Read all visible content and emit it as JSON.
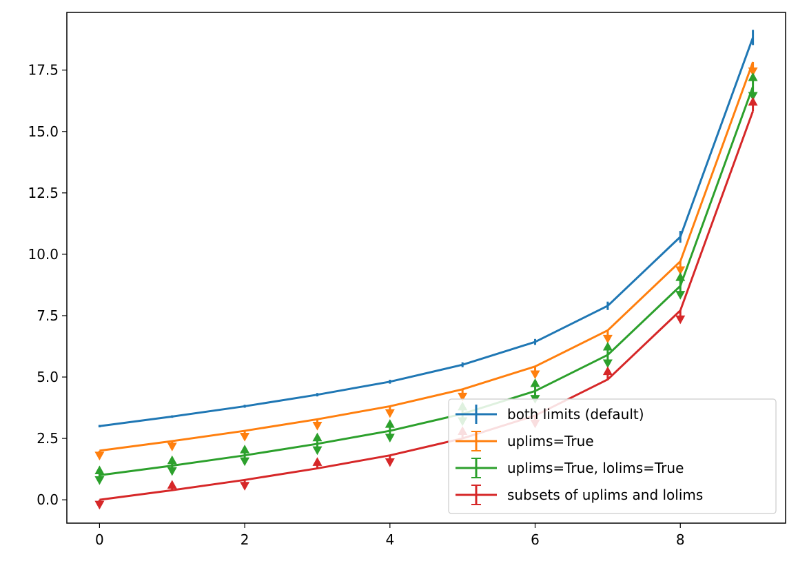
{
  "chart_data": {
    "type": "line",
    "title": "",
    "xlabel": "",
    "ylabel": "",
    "xlim": [
      -0.45,
      9.45
    ],
    "ylim": [
      -0.95,
      19.85
    ],
    "x_ticks": [
      0,
      2,
      4,
      6,
      8
    ],
    "x_tick_labels": [
      "0",
      "2",
      "4",
      "6",
      "8"
    ],
    "y_ticks": [
      0,
      2.5,
      5,
      7.5,
      10,
      12.5,
      15,
      17.5
    ],
    "y_tick_labels": [
      "0.0",
      "2.5",
      "5.0",
      "7.5",
      "10.0",
      "12.5",
      "15.0",
      "17.5"
    ],
    "grid": false,
    "legend_position": "lower-right",
    "x": [
      0,
      1,
      2,
      3,
      4,
      5,
      6,
      7,
      8,
      9
    ],
    "series": [
      {
        "name": "both limits (default)",
        "color": "#1f77b4",
        "values": [
          3.0,
          3.39,
          3.81,
          4.28,
          4.81,
          5.5,
          6.43,
          7.9,
          10.71,
          18.83
        ],
        "errors": [
          0.05,
          0.05,
          0.06,
          0.07,
          0.08,
          0.1,
          0.12,
          0.17,
          0.24,
          0.31
        ],
        "limit_markers": [
          "none",
          "none",
          "none",
          "none",
          "none",
          "none",
          "none",
          "none",
          "none",
          "none"
        ]
      },
      {
        "name": "uplims=True",
        "color": "#ff7f0e",
        "values": [
          2.0,
          2.39,
          2.81,
          3.28,
          3.81,
          4.5,
          5.43,
          6.9,
          9.71,
          17.83
        ],
        "errors": [
          0.2,
          0.22,
          0.24,
          0.26,
          0.28,
          0.3,
          0.32,
          0.34,
          0.36,
          0.38
        ],
        "limit_markers": [
          "up",
          "up",
          "up",
          "up",
          "up",
          "up",
          "up",
          "up",
          "up",
          "up"
        ]
      },
      {
        "name": "uplims=True, lolims=True",
        "color": "#2ca02c",
        "values": [
          1.0,
          1.39,
          1.81,
          2.28,
          2.81,
          3.5,
          4.43,
          5.9,
          8.71,
          16.83
        ],
        "errors": [
          0.2,
          0.22,
          0.24,
          0.26,
          0.28,
          0.3,
          0.32,
          0.34,
          0.36,
          0.38
        ],
        "limit_markers": [
          "both",
          "both",
          "both",
          "both",
          "both",
          "both",
          "both",
          "both",
          "both",
          "both"
        ]
      },
      {
        "name": "subsets of uplims and lolims",
        "color": "#d62728",
        "values": [
          0.0,
          0.39,
          0.81,
          1.28,
          1.81,
          2.5,
          3.43,
          4.9,
          7.71,
          15.83
        ],
        "errors": [
          0.2,
          0.22,
          0.24,
          0.26,
          0.28,
          0.3,
          0.32,
          0.34,
          0.36,
          0.38
        ],
        "limit_markers": [
          "up",
          "lo",
          "up",
          "lo",
          "up",
          "lo",
          "up",
          "lo",
          "up",
          "lo"
        ]
      }
    ]
  }
}
